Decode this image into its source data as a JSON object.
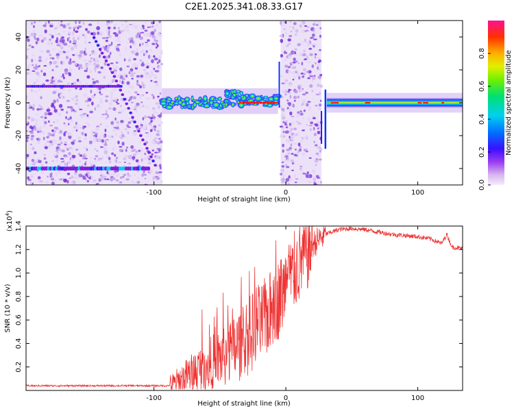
{
  "chart_data": [
    {
      "type": "heatmap",
      "title": "C2E1.2025.341.08.33.G17",
      "xlabel": "Height of straight line (km)",
      "ylabel": "Frequency (Hz)",
      "xlim": [
        -197,
        134
      ],
      "ylim": [
        -50,
        50
      ],
      "xticks": [
        -100,
        0,
        100
      ],
      "yticks": [
        -40,
        -20,
        0,
        20,
        40
      ],
      "colorbar": {
        "label": "Normalized spectral amplitude",
        "range": [
          0,
          1
        ],
        "ticks": [
          0.0,
          0.2,
          0.4,
          0.6,
          0.8
        ]
      },
      "regions": [
        {
          "name": "noise-left",
          "x": [
            -197,
            -94
          ],
          "freq": [
            -50,
            50
          ]
        },
        {
          "name": "noise-middle",
          "x": [
            -4,
            27
          ],
          "freq": [
            -50,
            50
          ]
        },
        {
          "name": "carrier-band-1",
          "x": [
            -94,
            -6
          ],
          "freq": [
            -6,
            8
          ]
        },
        {
          "name": "carrier-band-2",
          "x": [
            31,
            134
          ],
          "freq": [
            -3,
            3
          ]
        }
      ],
      "traces": [
        {
          "name": "diagonal-line",
          "points": [
            [
              -147,
              42
            ],
            [
              -130,
              16
            ],
            [
              -110,
              -20
            ],
            [
              -99,
              -38
            ]
          ]
        },
        {
          "name": "horizontal-line-plus10",
          "points": [
            [
              -197,
              10
            ],
            [
              -125,
              10
            ]
          ]
        },
        {
          "name": "horizontal-line-minus40",
          "points": [
            [
              -197,
              -40
            ],
            [
              -104,
              -40
            ]
          ]
        }
      ]
    },
    {
      "type": "line",
      "title": "",
      "xlabel": "Height of straight line (km)",
      "ylabel": "SNR (10 * v/v)",
      "multiplier": "(x10",
      "multiplier_exp": "4",
      "multiplier_close": ")",
      "xlim": [
        -197,
        134
      ],
      "ylim": [
        0,
        1.4
      ],
      "xticks": [
        -100,
        0,
        100
      ],
      "yticks": [
        0.2,
        0.4,
        0.6,
        0.8,
        1.0,
        1.2,
        1.4
      ],
      "color": "#ee3333",
      "series": [
        {
          "name": "SNR",
          "x": [
            -197,
            -90,
            -85,
            -70,
            -60,
            -50,
            -40,
            -30,
            -20,
            -10,
            0,
            5,
            10,
            15,
            20,
            30,
            40,
            50,
            60,
            70,
            80,
            90,
            100,
            110,
            118,
            122,
            126,
            134
          ],
          "values": [
            0.04,
            0.04,
            0.05,
            0.16,
            0.22,
            0.27,
            0.34,
            0.45,
            0.55,
            0.7,
            0.88,
            0.98,
            1.08,
            1.17,
            1.24,
            1.33,
            1.37,
            1.38,
            1.37,
            1.35,
            1.33,
            1.32,
            1.31,
            1.29,
            1.25,
            1.33,
            1.22,
            1.21
          ]
        }
      ]
    }
  ]
}
